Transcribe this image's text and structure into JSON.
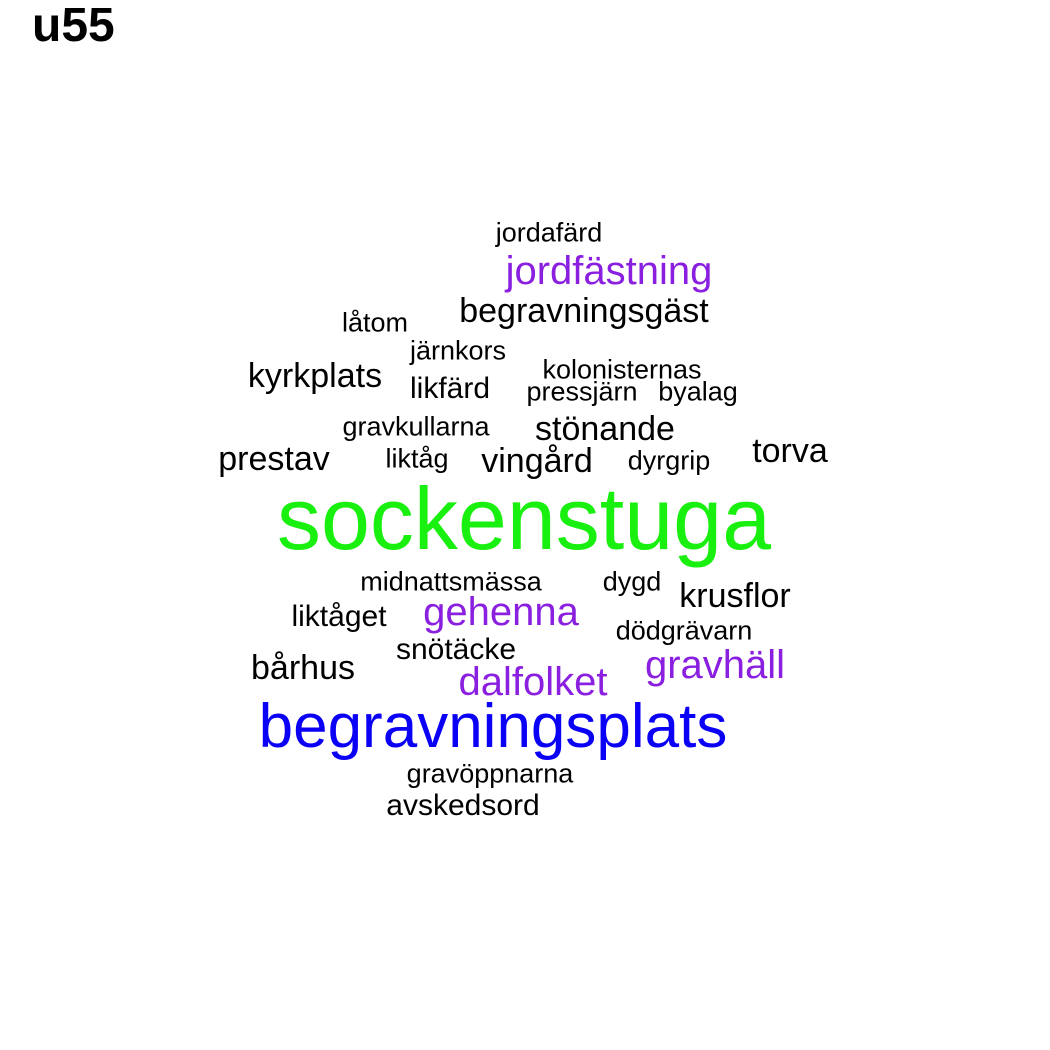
{
  "title": "u55",
  "colors": {
    "black": "#000000",
    "purple": "#8a1fe0",
    "blue": "#0a00f5",
    "green": "#1af00f"
  },
  "words": [
    "jordafärd",
    "jordfästning",
    "begravningsgäst",
    "låtom",
    "järnkors",
    "kolonisternas",
    "kyrkplats",
    "likfärd",
    "pressjärn",
    "byalag",
    "gravkullarna",
    "stönande",
    "prestav",
    "liktåg",
    "vingård",
    "dyrgrip",
    "torva",
    "sockenstuga",
    "midnattsmässa",
    "dygd",
    "krusflor",
    "liktåget",
    "gehenna",
    "dödgrävarn",
    "snötäcke",
    "bårhus",
    "gravhäll",
    "dalfolket",
    "begravningsplats",
    "gravöppnarna",
    "avskedsord"
  ]
}
